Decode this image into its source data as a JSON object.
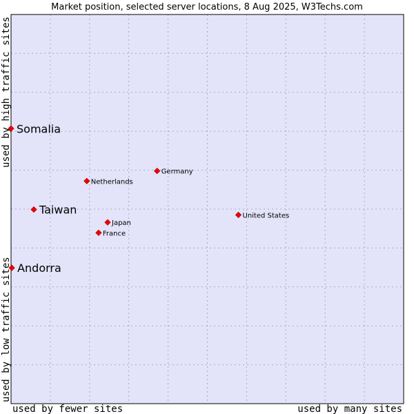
{
  "chart_data": {
    "type": "scatter",
    "title": "Market position, selected server locations, 8 Aug 2025, W3Techs.com",
    "xlabel_left": "used by fewer sites",
    "xlabel_right": "used by many sites",
    "ylabel_bottom": "used by low traffic sites",
    "ylabel_top": "used by high traffic sites",
    "xlim": [
      0,
      100
    ],
    "ylim": [
      0,
      100
    ],
    "grid": true,
    "points": [
      {
        "name": "Somalia",
        "x": 0.0,
        "y": 70.7,
        "highlight": true
      },
      {
        "name": "Germany",
        "x": 37.2,
        "y": 59.8,
        "highlight": false
      },
      {
        "name": "Netherlands",
        "x": 19.3,
        "y": 57.2,
        "highlight": false
      },
      {
        "name": "Taiwan",
        "x": 5.8,
        "y": 49.9,
        "highlight": true
      },
      {
        "name": "United States",
        "x": 57.9,
        "y": 48.5,
        "highlight": false
      },
      {
        "name": "Japan",
        "x": 24.6,
        "y": 46.6,
        "highlight": false
      },
      {
        "name": "France",
        "x": 22.3,
        "y": 43.9,
        "highlight": false
      },
      {
        "name": "Andorra",
        "x": 0.2,
        "y": 34.9,
        "highlight": true
      }
    ],
    "colors": {
      "plot_background": "#e3e4f9",
      "grid": "#a9a9c6",
      "border": "#000000",
      "marker": "#ee0000"
    }
  }
}
